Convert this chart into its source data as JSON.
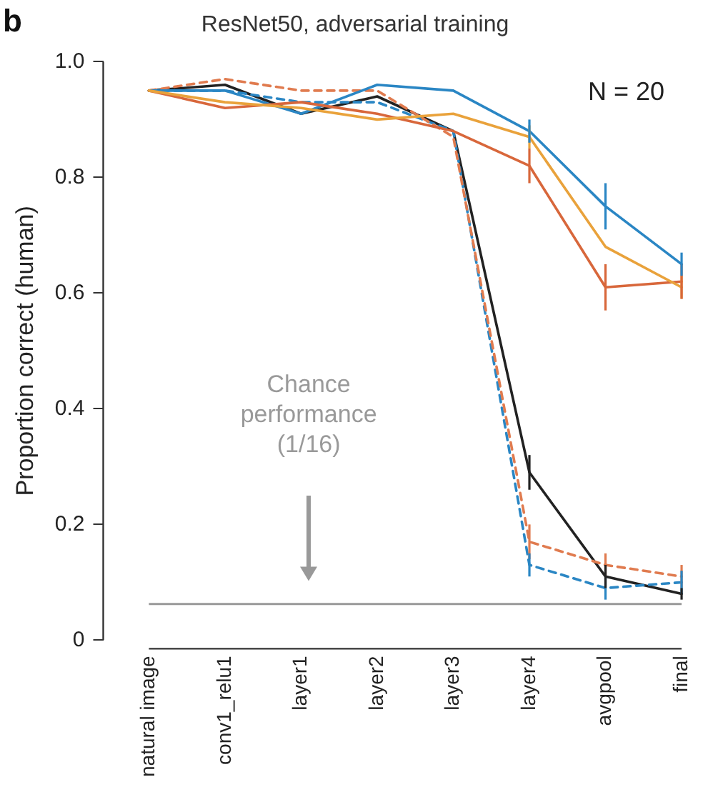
{
  "chart_data": {
    "type": "line",
    "title": "ResNet50, adversarial training",
    "ylabel": "Proportion correct (human)",
    "categories": [
      "natural image",
      "conv1_relu1",
      "layer1",
      "layer2",
      "layer3",
      "layer4",
      "avgpool",
      "final"
    ],
    "series": [
      {
        "color": "#e9a23b",
        "values": [
          0.95,
          0.93,
          0.92,
          0.9,
          0.91,
          0.87,
          0.68,
          0.61
        ],
        "errors": [
          null,
          null,
          null,
          null,
          null,
          0.02,
          null,
          0.02
        ]
      },
      {
        "color": "#d8673b",
        "values": [
          0.95,
          0.92,
          0.93,
          0.91,
          0.88,
          0.82,
          0.61,
          0.62
        ],
        "errors": [
          null,
          null,
          null,
          null,
          null,
          0.03,
          0.04,
          0.03
        ]
      },
      {
        "color": "#2a86c4",
        "values": [
          0.95,
          0.95,
          0.91,
          0.96,
          0.95,
          0.88,
          0.75,
          0.65
        ],
        "errors": [
          null,
          null,
          null,
          null,
          null,
          0.02,
          0.04,
          0.02
        ]
      },
      {
        "color": "#e07b4f",
        "line_style": "dashed",
        "values": [
          0.95,
          0.97,
          0.95,
          0.95,
          0.87,
          0.17,
          0.13,
          0.11
        ],
        "errors": [
          null,
          null,
          null,
          null,
          null,
          0.03,
          0.02,
          0.02
        ]
      },
      {
        "color": "#2a86c4",
        "line_style": "dashed",
        "values": [
          0.95,
          0.95,
          0.93,
          0.93,
          0.88,
          0.13,
          0.09,
          0.1
        ],
        "errors": [
          null,
          null,
          null,
          null,
          null,
          0.02,
          0.02,
          0.02
        ]
      },
      {
        "color": "#222222",
        "values": [
          0.95,
          0.96,
          0.91,
          0.94,
          0.88,
          0.29,
          0.11,
          0.08
        ],
        "errors": [
          null,
          null,
          null,
          null,
          null,
          0.03,
          0.02,
          0.01
        ]
      }
    ],
    "ylim": [
      0,
      1
    ],
    "yticks": [
      0,
      0.2,
      0.4,
      0.6,
      0.8,
      {
        "value": 1,
        "label": "1.0"
      }
    ],
    "ref_lines": [
      {
        "axis": "y",
        "value": 0.0625,
        "label": "Chance performance (1/16)",
        "color": "#999999"
      }
    ],
    "annotations": [
      "b",
      "N = 20"
    ],
    "grid": false,
    "legend": false,
    "marker": "none",
    "line_style": "solid"
  }
}
